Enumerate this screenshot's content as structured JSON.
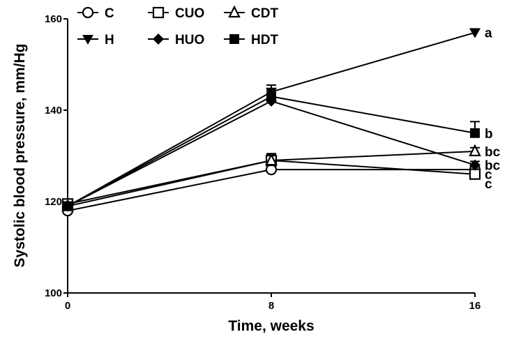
{
  "chart_data": {
    "type": "line",
    "xlabel": "Time, weeks",
    "ylabel": "Systolic blood pressure, mm/Hg",
    "x": [
      0,
      8,
      16
    ],
    "x_ticks": [
      "0",
      "8",
      "16"
    ],
    "xlim": [
      0,
      16
    ],
    "ylim": [
      100,
      160
    ],
    "y_ticks": [
      "100",
      "120",
      "140",
      "160"
    ],
    "grid": false,
    "legend_position": "top-left",
    "series": [
      {
        "name": "C",
        "marker": "open-circle",
        "values": [
          118,
          127,
          127
        ],
        "err": [
          0.5,
          0.8,
          0.8
        ]
      },
      {
        "name": "CUO",
        "marker": "open-square",
        "values": [
          119.5,
          129,
          126
        ],
        "err": [
          0.5,
          1.5,
          0.8
        ]
      },
      {
        "name": "CDT",
        "marker": "open-triangle-up",
        "values": [
          119,
          129,
          131
        ],
        "err": [
          0.5,
          1.2,
          0.8
        ]
      },
      {
        "name": "H",
        "marker": "filled-triangle-down",
        "values": [
          119,
          144,
          157
        ],
        "err": [
          0.5,
          1.5,
          0.8
        ]
      },
      {
        "name": "HUO",
        "marker": "filled-diamond",
        "values": [
          119,
          142,
          128
        ],
        "err": [
          0.5,
          1.0,
          0.8
        ]
      },
      {
        "name": "HDT",
        "marker": "filled-square",
        "values": [
          119,
          143,
          135
        ],
        "err": [
          0.5,
          1.3,
          2.5
        ]
      }
    ],
    "annotations": [
      {
        "text": "a",
        "x": 16,
        "y": 157
      },
      {
        "text": "b",
        "x": 16,
        "y": 135
      },
      {
        "text": "bc",
        "x": 16,
        "y": 131
      },
      {
        "text": "c",
        "x": 16,
        "y": 126
      },
      {
        "text": "bc",
        "x": 16,
        "y": 128
      },
      {
        "text": "c",
        "x": 16,
        "y": 124
      }
    ]
  }
}
